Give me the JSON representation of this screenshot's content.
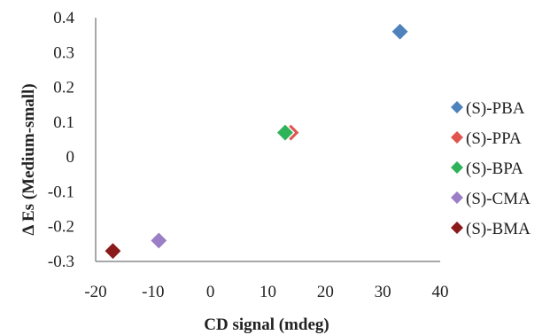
{
  "chart_data": {
    "type": "scatter",
    "xlabel": "CD signal (mdeg)",
    "ylabel": "Δ Es (Medium-small)",
    "xlim": [
      -20,
      40
    ],
    "ylim": [
      -0.3,
      0.4
    ],
    "xticks": [
      -20,
      -10,
      0,
      10,
      20,
      30,
      40
    ],
    "yticks": [
      0.4,
      0.3,
      0.2,
      0.1,
      0,
      -0.1,
      -0.2,
      -0.3
    ],
    "grid": false,
    "legend_position": "right",
    "marker": "diamond",
    "series": [
      {
        "name": "(S)-PBA",
        "color": "#4f81bd",
        "points": [
          {
            "x": 33,
            "y": 0.36
          }
        ]
      },
      {
        "name": "(S)-PPA",
        "color": "#e0554f",
        "points": [
          {
            "x": 14,
            "y": 0.07
          }
        ]
      },
      {
        "name": "(S)-BPA",
        "color": "#2fb35a",
        "points": [
          {
            "x": 13,
            "y": 0.07
          }
        ]
      },
      {
        "name": "(S)-CMA",
        "color": "#9b7fc6",
        "points": [
          {
            "x": -9,
            "y": -0.24
          }
        ]
      },
      {
        "name": "(S)-BMA",
        "color": "#8b1a1a",
        "points": [
          {
            "x": -17,
            "y": -0.27
          }
        ]
      }
    ]
  }
}
